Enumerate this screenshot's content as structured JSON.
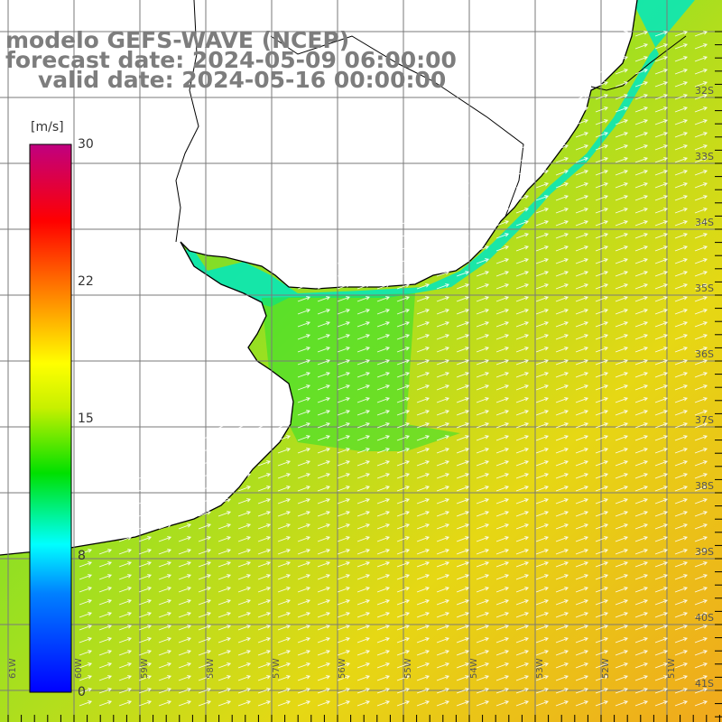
{
  "map": {
    "title": [
      "modelo GEFS-WAVE (NCEP)",
      "forecast date: 2024-05-09 06:00:00",
      "valid date: 2024-05-16 00:00:00"
    ],
    "colorbar": {
      "unit": "[m/s]",
      "ticks": [
        "30",
        "22",
        "15",
        "8",
        "0"
      ],
      "colors": [
        "#c00080",
        "#ff0000",
        "#ff8000",
        "#ffff00",
        "#00e000",
        "#00ffff",
        "#0080ff",
        "#0000ff"
      ]
    },
    "lat_labels": [
      "32S",
      "33S",
      "34S",
      "35S",
      "36S",
      "37S",
      "38S",
      "39S",
      "40S",
      "41S"
    ],
    "lon_labels": [
      "61W",
      "60W",
      "59W",
      "58W",
      "57W",
      "56W",
      "55W",
      "54W",
      "53W",
      "52W",
      "51W"
    ],
    "colors": {
      "land": "#ffffff",
      "coast": "#000000",
      "grid": "#7a7a7a",
      "arrows": "#ffffff",
      "title": "#7d7d7d"
    }
  }
}
